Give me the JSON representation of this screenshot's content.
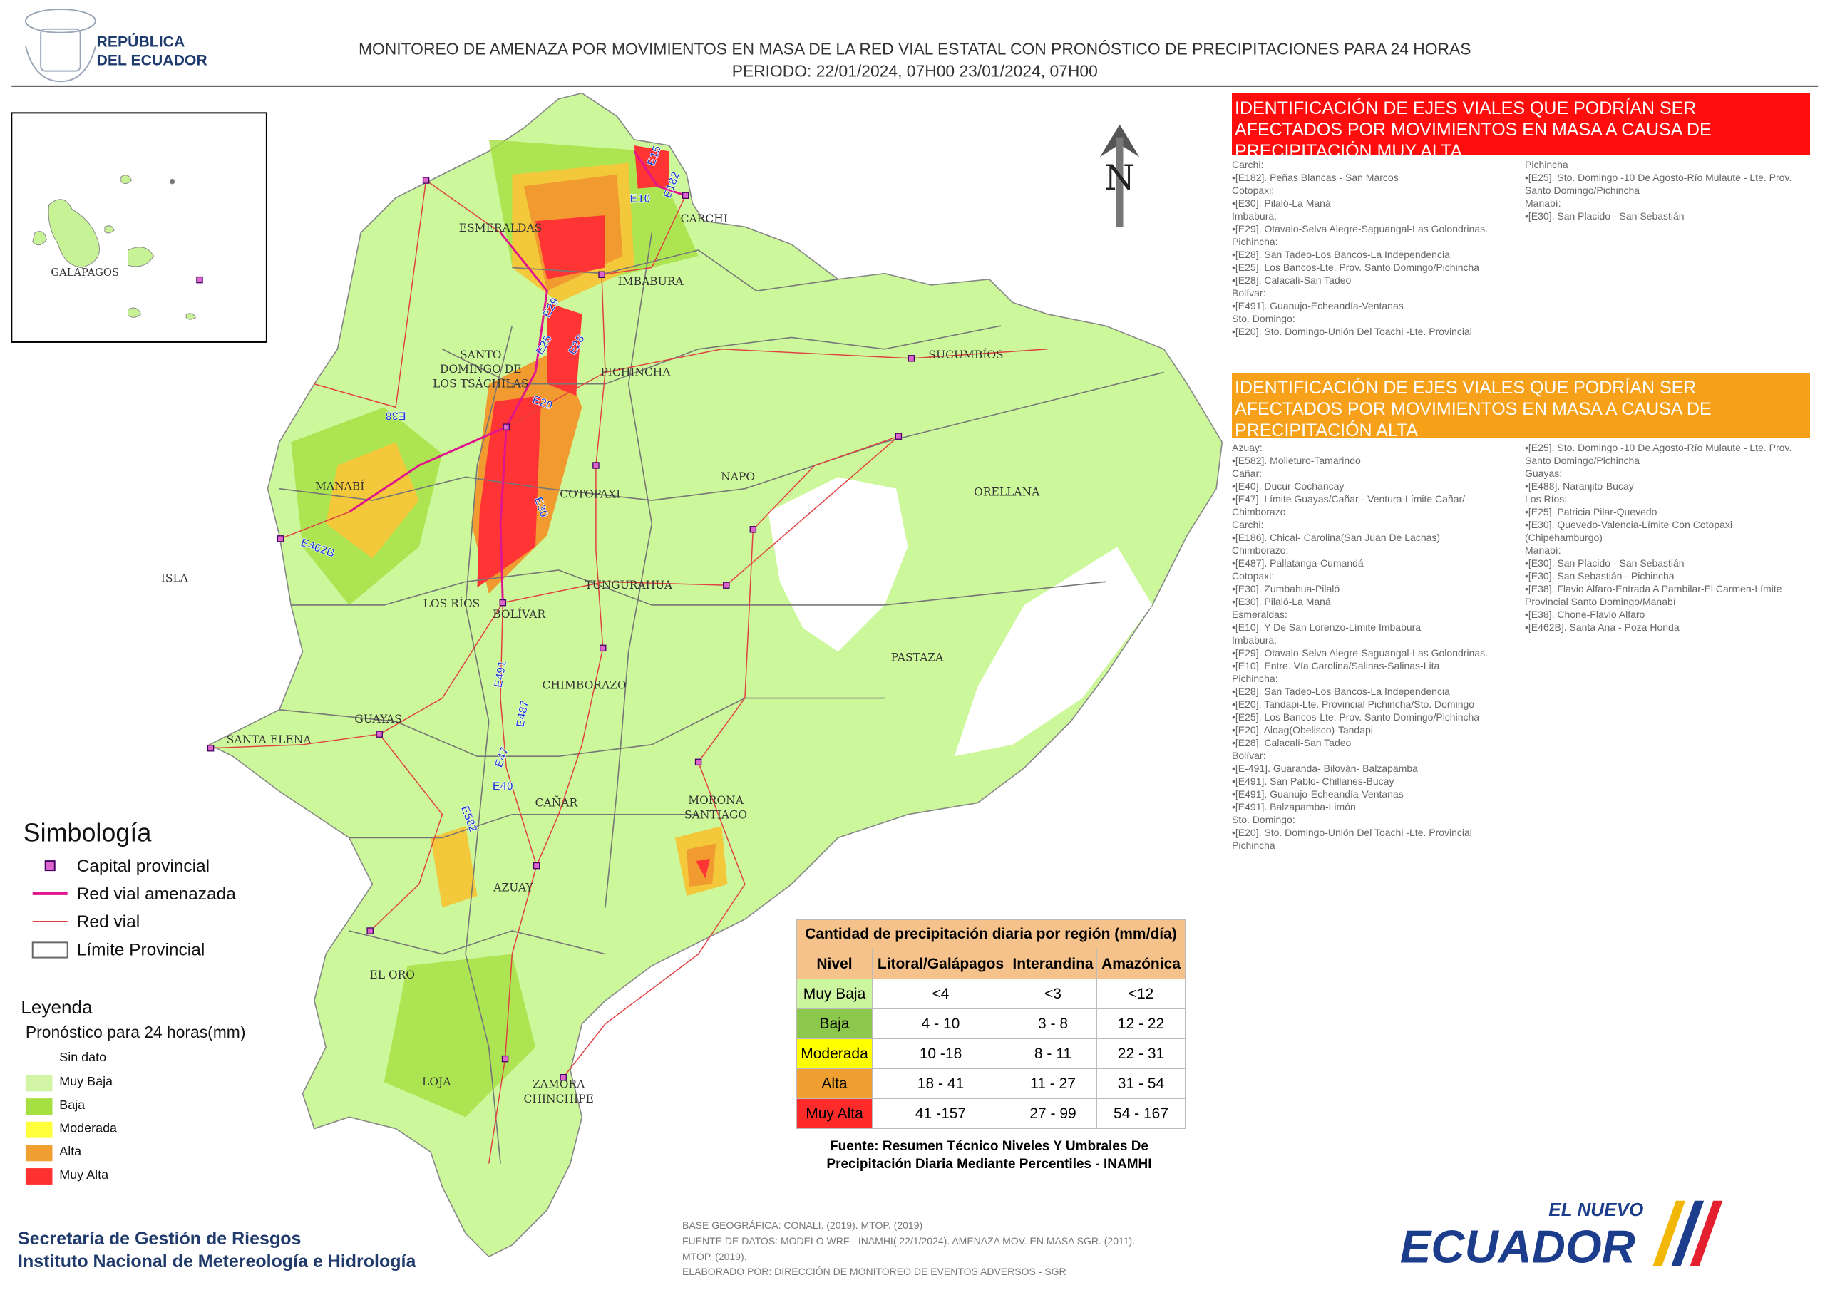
{
  "header": {
    "emblem_text": [
      "REPÚBLICA",
      "DEL ECUADOR"
    ],
    "title": "MONITOREO DE AMENAZA POR MOVIMIENTOS EN MASA DE LA RED VIAL  ESTATAL  CON PRONÓSTICO  DE  PRECIPITACIONES PARA 24 HORAS",
    "subtitle": "PERIODO: 22/01/2024, 07H00 23/01/2024, 07H00"
  },
  "inset": {
    "label": "GALÁPAGOS"
  },
  "north": "N",
  "provinces": [
    {
      "lines": [
        "ESMERALDAS"
      ]
    },
    {
      "lines": [
        "CARCHI"
      ]
    },
    {
      "lines": [
        "IMBABURA"
      ]
    },
    {
      "lines": [
        "SUCUMBÍOS"
      ]
    },
    {
      "lines": [
        "SANTO",
        "DOMINGO DE",
        "LOS TSÁCHILAS"
      ]
    },
    {
      "lines": [
        "PICHINCHA"
      ]
    },
    {
      "lines": [
        "MANABÍ"
      ]
    },
    {
      "lines": [
        "COTOPAXI"
      ]
    },
    {
      "lines": [
        "NAPO"
      ]
    },
    {
      "lines": [
        "ORELLANA"
      ]
    },
    {
      "lines": [
        "ISLA"
      ]
    },
    {
      "lines": [
        "LOS RÍOS"
      ]
    },
    {
      "lines": [
        "BOLÍVAR"
      ]
    },
    {
      "lines": [
        "TUNGURAHUA"
      ]
    },
    {
      "lines": [
        "PASTAZA"
      ]
    },
    {
      "lines": [
        "CHIMBORAZO"
      ]
    },
    {
      "lines": [
        "GUAYAS"
      ]
    },
    {
      "lines": [
        "SANTA ELENA"
      ]
    },
    {
      "lines": [
        "CAÑAR"
      ]
    },
    {
      "lines": [
        "MORONA",
        "SANTIAGO"
      ]
    },
    {
      "lines": [
        "AZUAY"
      ]
    },
    {
      "lines": [
        "EL ORO"
      ]
    },
    {
      "lines": [
        "LOJA"
      ]
    },
    {
      "lines": [
        "ZAMORA",
        "CHINCHIPE"
      ]
    }
  ],
  "road_labels": [
    "E15",
    "E182",
    "E10",
    "E29",
    "E25",
    "E28",
    "E20",
    "E38",
    "E30",
    "E462B",
    "E491",
    "E487",
    "E47",
    "E40",
    "E582"
  ],
  "very_high": {
    "title": "IDENTIFICACIÓN DE EJES VIALES QUE PODRÍAN SER AFECTADOS POR MOVIMIENTOS EN MASA A CAUSA DE PRECIPITACIÓN MUY ALTA",
    "columns": [
      [
        "Carchi:",
        "•[E182]. Peñas Blancas - San Marcos",
        "Cotopaxi:",
        "•[E30]. Pilaló-La Maná",
        "Imbabura:",
        "•[E29]. Otavalo-Selva Alegre-Saguangal-Las Golondrinas.",
        "Pichincha:",
        "•[E28]. San Tadeo-Los Bancos-La Independencia",
        "•[E25]. Los Bancos-Lte. Prov. Santo Domingo/Pichincha",
        "•[E28]. Calacalí-San Tadeo",
        "Bolívar:",
        "•[E491]. Guanujo-Echeandía-Ventanas",
        "Sto. Domingo:",
        "•[E20]. Sto. Domingo-Unión Del Toachi -Lte. Provincial"
      ],
      [
        "Pichincha",
        "•[E25]. Sto. Domingo -10 De Agosto-Río Mulaute - Lte. Prov. Santo Domingo/Pichincha",
        "Manabí:",
        "•[E30]. San Placido - San Sebastián"
      ]
    ]
  },
  "high": {
    "title": "IDENTIFICACIÓN DE EJES VIALES QUE PODRÍAN SER AFECTADOS POR MOVIMIENTOS EN MASA A CAUSA DE PRECIPITACIÓN  ALTA",
    "columns": [
      [
        "Azuay:",
        "•[E582]. Molleturo-Tamarindo",
        "Cañar:",
        "•[E40]. Ducur-Cochancay",
        "•[E47]. Límite Guayas/Cañar - Ventura-Límite Cañar/ Chimborazo",
        "Carchi:",
        "•[E186]. Chical- Carolina(San Juan De Lachas)",
        "Chimborazo:",
        "•[E487]. Pallatanga-Cumandá",
        "Cotopaxi:",
        "•[E30]. Zumbahua-Pilaló",
        "•[E30]. Pilaló-La Maná",
        "Esmeraldas:",
        "•[E10]. Y De San Lorenzo-Límite Imbabura",
        "Imbabura:",
        "•[E29]. Otavalo-Selva Alegre-Saguangal-Las Golondrinas.",
        "•[E10]. Entre. Vía Carolina/Salinas-Salinas-Lita",
        "Pichincha:",
        "•[E28]. San Tadeo-Los Bancos-La Independencia",
        "•[E20]. Tandapi-Lte. Provincial Pichincha/Sto. Domingo",
        "•[E25]. Los Bancos-Lte. Prov. Santo Domingo/Pichincha",
        "•[E20]. Aloag(Obelisco)-Tandapi",
        "•[E28]. Calacalí-San Tadeo",
        "Bolívar:",
        "•[E-491]. Guaranda- Bilován- Balzapamba",
        "•[E491]. San Pablo- Chillanes-Bucay",
        "•[E491]. Guanujo-Echeandía-Ventanas",
        "•[E491]. Balzapamba-Limón",
        "Sto. Domingo:",
        "•[E20]. Sto. Domingo-Unión Del Toachi -Lte. Provincial Pichincha"
      ],
      [
        "•[E25]. Sto. Domingo -10 De Agosto-Río Mulaute - Lte. Prov. Santo Domingo/Pichincha",
        "Guayas:",
        "•[E488]. Naranjito-Bucay",
        "Los Ríos:",
        "•[E25]. Patricia Pilar-Quevedo",
        "•[E30]. Quevedo-Valencia-Límite Con Cotopaxi (Chipehamburgo)",
        "Manabí:",
        "•[E30]. San Placido - San Sebastián",
        "•[E30]. San Sebastián - Pichincha",
        "•[E38]. Flavio Alfaro-Entrada A Pambilar-El Carmen-Límite Provincial Santo Domingo/Manabí",
        "•[E38]. Chone-Flavio Alfaro",
        "•[E462B]. Santa Ana - Poza Honda"
      ]
    ]
  },
  "symbology": {
    "title": "Simbología",
    "items": [
      "Capital provincial",
      "Red vial amenazada",
      "Red vial",
      "Límite Provincial"
    ]
  },
  "legend": {
    "title": "Leyenda",
    "subtitle": "Pronóstico para 24 horas(mm)",
    "items": [
      "Sin dato",
      "Muy Baja",
      "Baja",
      "Moderada",
      "Alta",
      "Muy Alta"
    ]
  },
  "table": {
    "title": "Cantidad de precipitación diaria por región (mm/día)",
    "columns": [
      "Nivel",
      "Litoral/Galápagos",
      "Interandina",
      "Amazónica"
    ],
    "rows": [
      [
        "Muy Baja",
        "<4",
        "<3",
        "<12"
      ],
      [
        "Baja",
        "4 - 10",
        "3 - 8",
        "12 - 22"
      ],
      [
        "Moderada",
        "10 -18",
        "8 - 11",
        "22 - 31"
      ],
      [
        "Alta",
        "18 - 41",
        "11 - 27",
        "31 - 54"
      ],
      [
        "Muy Alta",
        "41 -157",
        "27 - 99",
        "54 - 167"
      ]
    ],
    "source": [
      "Fuente: Resumen Técnico Niveles Y Umbrales De",
      "Precipitación Diaria Mediante Percentiles - INAMHI"
    ]
  },
  "footer": {
    "institutions": [
      "Secretaría de Gestión de Riesgos",
      "Instituto Nacional de Metereología e Hidrología"
    ],
    "notes": [
      "BASE GEOGRÁFICA: CONALI. (2019). MTOP. (2019)",
      "FUENTE DE DATOS: MODELO WRF - INAMHI( 22/1/2024).  AMENAZA MOV. EN MASA SGR. (2011).",
      "MTOP. (2019).",
      "ELABORADO POR: DIRECCIÓN DE MONITOREO DE EVENTOS ADVERSOS - SGR"
    ],
    "brand": [
      "EL NUEVO",
      "ECUADOR"
    ]
  }
}
